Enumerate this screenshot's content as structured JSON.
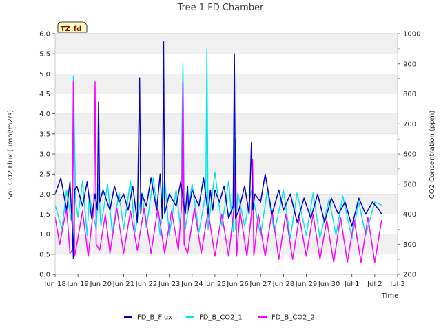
{
  "chart_data": {
    "type": "line",
    "title": "Tree 1 FD Chamber",
    "annotation": "TZ_fd",
    "xlabel": "Time",
    "ylabel": "Soil CO2 Flux (umol/m2/s)",
    "y2label": "CO2 Concentration (ppm)",
    "xlim": [
      0,
      15
    ],
    "ylim": [
      0.0,
      6.0
    ],
    "y2lim": [
      200,
      1000
    ],
    "x_ticks": [
      {
        "pos": 0,
        "label": "Jun 18"
      },
      {
        "pos": 1,
        "label": "Jun 19"
      },
      {
        "pos": 2,
        "label": "Jun 20"
      },
      {
        "pos": 3,
        "label": "Jun 21"
      },
      {
        "pos": 4,
        "label": "Jun 22"
      },
      {
        "pos": 5,
        "label": "Jun 23"
      },
      {
        "pos": 6,
        "label": "Jun 24"
      },
      {
        "pos": 7,
        "label": "Jun 25"
      },
      {
        "pos": 8,
        "label": "Jun 26"
      },
      {
        "pos": 9,
        "label": "Jun 27"
      },
      {
        "pos": 10,
        "label": "Jun 28"
      },
      {
        "pos": 11,
        "label": "Jun 29"
      },
      {
        "pos": 12,
        "label": "Jun 30"
      },
      {
        "pos": 13,
        "label": "Jul 1"
      },
      {
        "pos": 14,
        "label": "Jul 2"
      },
      {
        "pos": 15,
        "label": "Jul 3"
      }
    ],
    "y_ticks": [
      "0.0",
      "0.5",
      "1.0",
      "1.5",
      "2.0",
      "2.5",
      "3.0",
      "3.5",
      "4.0",
      "4.5",
      "5.0",
      "5.5",
      "6.0"
    ],
    "y2_ticks": [
      "200",
      "300",
      "400",
      "500",
      "600",
      "700",
      "800",
      "900",
      "1000"
    ],
    "legend": {
      "position": "bottom-center",
      "entries": [
        "FD_B_Flux",
        "FD_B_CO2_1",
        "FD_B_CO2_2"
      ]
    },
    "series": [
      {
        "name": "FD_B_Flux",
        "axis": "left",
        "color": "#0000cc",
        "x": [
          0.0,
          0.25,
          0.5,
          0.65,
          0.75,
          0.8,
          0.85,
          0.95,
          1.2,
          1.4,
          1.6,
          1.75,
          1.85,
          1.9,
          1.95,
          2.1,
          2.4,
          2.6,
          2.8,
          3.0,
          3.2,
          3.4,
          3.6,
          3.7,
          3.75,
          3.8,
          4.0,
          4.2,
          4.45,
          4.6,
          4.7,
          4.75,
          4.8,
          5.0,
          5.3,
          5.5,
          5.7,
          5.8,
          5.85,
          6.0,
          6.3,
          6.5,
          6.7,
          6.8,
          6.9,
          7.0,
          7.2,
          7.4,
          7.6,
          7.8,
          7.85,
          7.9,
          8.05,
          8.3,
          8.5,
          8.6,
          8.65,
          8.75,
          9.0,
          9.2,
          9.5,
          9.8,
          10.0,
          10.3,
          10.6,
          10.9,
          11.2,
          11.5,
          11.8,
          12.1,
          12.4,
          12.7,
          13.0,
          13.3,
          13.6,
          13.9,
          14.2,
          14.3
        ],
        "values": [
          2.0,
          2.4,
          1.6,
          2.3,
          1.2,
          0.4,
          2.1,
          2.2,
          1.7,
          2.3,
          1.4,
          2.0,
          1.6,
          4.3,
          1.8,
          2.1,
          1.6,
          2.2,
          1.8,
          2.0,
          1.6,
          2.2,
          1.3,
          4.9,
          1.5,
          2.0,
          1.7,
          2.4,
          1.6,
          2.5,
          1.4,
          5.8,
          1.5,
          2.0,
          1.7,
          2.3,
          1.5,
          2.2,
          1.6,
          2.1,
          1.7,
          2.4,
          1.5,
          2.1,
          1.6,
          2.1,
          1.8,
          2.2,
          1.4,
          1.7,
          5.5,
          1.4,
          1.6,
          2.2,
          1.5,
          3.3,
          1.6,
          2.0,
          1.8,
          2.5,
          1.5,
          2.1,
          1.6,
          2.0,
          1.3,
          1.9,
          1.4,
          2.0,
          1.3,
          1.9,
          1.5,
          1.8,
          1.2,
          1.9,
          1.5,
          1.8,
          1.6,
          1.5
        ]
      },
      {
        "name": "FD_B_CO2_1",
        "axis": "right",
        "color": "#00e5ee",
        "x": [
          0.0,
          0.3,
          0.5,
          0.7,
          0.75,
          0.8,
          0.9,
          1.0,
          1.2,
          1.4,
          1.5,
          1.8,
          1.9,
          2.0,
          2.3,
          2.5,
          2.8,
          3.0,
          3.3,
          3.5,
          3.8,
          4.0,
          4.3,
          4.6,
          4.8,
          5.0,
          5.3,
          5.5,
          5.6,
          5.65,
          5.7,
          6.0,
          6.3,
          6.6,
          6.65,
          6.7,
          7.0,
          7.3,
          7.6,
          7.8,
          7.85,
          7.9,
          8.0,
          8.3,
          8.6,
          9.0,
          9.3,
          9.6,
          10.0,
          10.3,
          10.6,
          11.0,
          11.3,
          11.6,
          12.0,
          12.3,
          12.6,
          13.0,
          13.3,
          13.6,
          14.0,
          14.3
        ],
        "values": [
          430,
          350,
          480,
          380,
          405,
          860,
          440,
          390,
          510,
          330,
          460,
          350,
          500,
          360,
          500,
          340,
          470,
          350,
          510,
          340,
          470,
          355,
          520,
          330,
          520,
          330,
          480,
          350,
          900,
          440,
          350,
          500,
          340,
          470,
          950,
          350,
          540,
          360,
          510,
          340,
          715,
          350,
          470,
          360,
          480,
          330,
          480,
          340,
          480,
          320,
          470,
          330,
          470,
          320,
          450,
          330,
          460,
          320,
          440,
          330,
          440,
          430
        ]
      },
      {
        "name": "FD_B_CO2_2",
        "axis": "right",
        "color": "#ff00ff",
        "x": [
          0.0,
          0.2,
          0.5,
          0.65,
          0.75,
          0.8,
          0.85,
          0.95,
          1.2,
          1.45,
          1.7,
          1.75,
          1.8,
          1.95,
          2.2,
          2.4,
          2.7,
          3.0,
          3.3,
          3.6,
          3.9,
          4.2,
          4.5,
          4.8,
          5.1,
          5.4,
          5.55,
          5.6,
          5.65,
          5.8,
          6.1,
          6.4,
          6.7,
          7.0,
          7.3,
          7.6,
          7.85,
          7.9,
          7.95,
          8.1,
          8.4,
          8.6,
          8.65,
          8.7,
          8.9,
          9.2,
          9.5,
          9.8,
          10.1,
          10.4,
          10.7,
          11.0,
          11.3,
          11.6,
          11.9,
          12.2,
          12.5,
          12.8,
          13.1,
          13.4,
          13.7,
          14.0,
          14.3
        ],
        "values": [
          390,
          300,
          420,
          270,
          280,
          840,
          260,
          300,
          410,
          260,
          430,
          840,
          300,
          280,
          400,
          270,
          420,
          270,
          410,
          280,
          420,
          270,
          420,
          270,
          410,
          280,
          440,
          840,
          300,
          270,
          420,
          270,
          410,
          260,
          400,
          260,
          430,
          650,
          260,
          410,
          260,
          400,
          580,
          260,
          400,
          260,
          410,
          250,
          400,
          250,
          390,
          260,
          400,
          250,
          380,
          240,
          390,
          240,
          380,
          240,
          390,
          240,
          380
        ]
      }
    ]
  }
}
